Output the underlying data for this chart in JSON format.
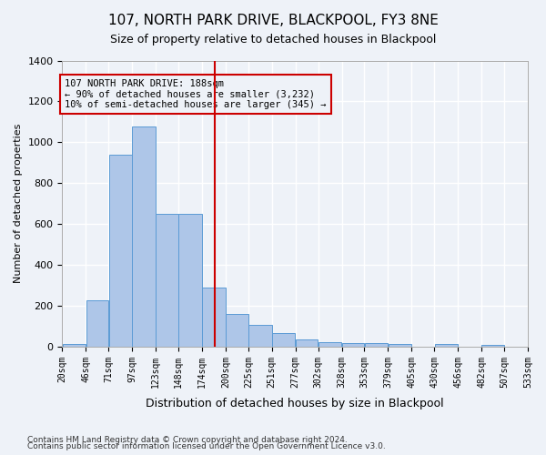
{
  "title1": "107, NORTH PARK DRIVE, BLACKPOOL, FY3 8NE",
  "title2": "Size of property relative to detached houses in Blackpool",
  "xlabel": "Distribution of detached houses by size in Blackpool",
  "ylabel": "Number of detached properties",
  "footer1": "Contains HM Land Registry data © Crown copyright and database right 2024.",
  "footer2": "Contains public sector information licensed under the Open Government Licence v3.0.",
  "annotation_line1": "107 NORTH PARK DRIVE: 188sqm",
  "annotation_line2": "← 90% of detached houses are smaller (3,232)",
  "annotation_line3": "10% of semi-detached houses are larger (345) →",
  "property_size": 188,
  "bin_edges": [
    20,
    46,
    71,
    97,
    123,
    148,
    174,
    200,
    225,
    251,
    277,
    302,
    328,
    353,
    379,
    405,
    430,
    456,
    482,
    507,
    533
  ],
  "bar_heights": [
    15,
    225,
    940,
    1075,
    648,
    648,
    290,
    160,
    105,
    65,
    35,
    20,
    18,
    18,
    14,
    0,
    13,
    0,
    10,
    0
  ],
  "bar_color": "#aec6e8",
  "bar_edge_color": "#5b9bd5",
  "vline_color": "#cc0000",
  "vline_x": 188,
  "ylim": [
    0,
    1400
  ],
  "yticks": [
    0,
    200,
    400,
    600,
    800,
    1000,
    1200,
    1400
  ],
  "bg_color": "#eef2f8",
  "grid_color": "#ffffff",
  "annotation_box_color": "#cc0000"
}
